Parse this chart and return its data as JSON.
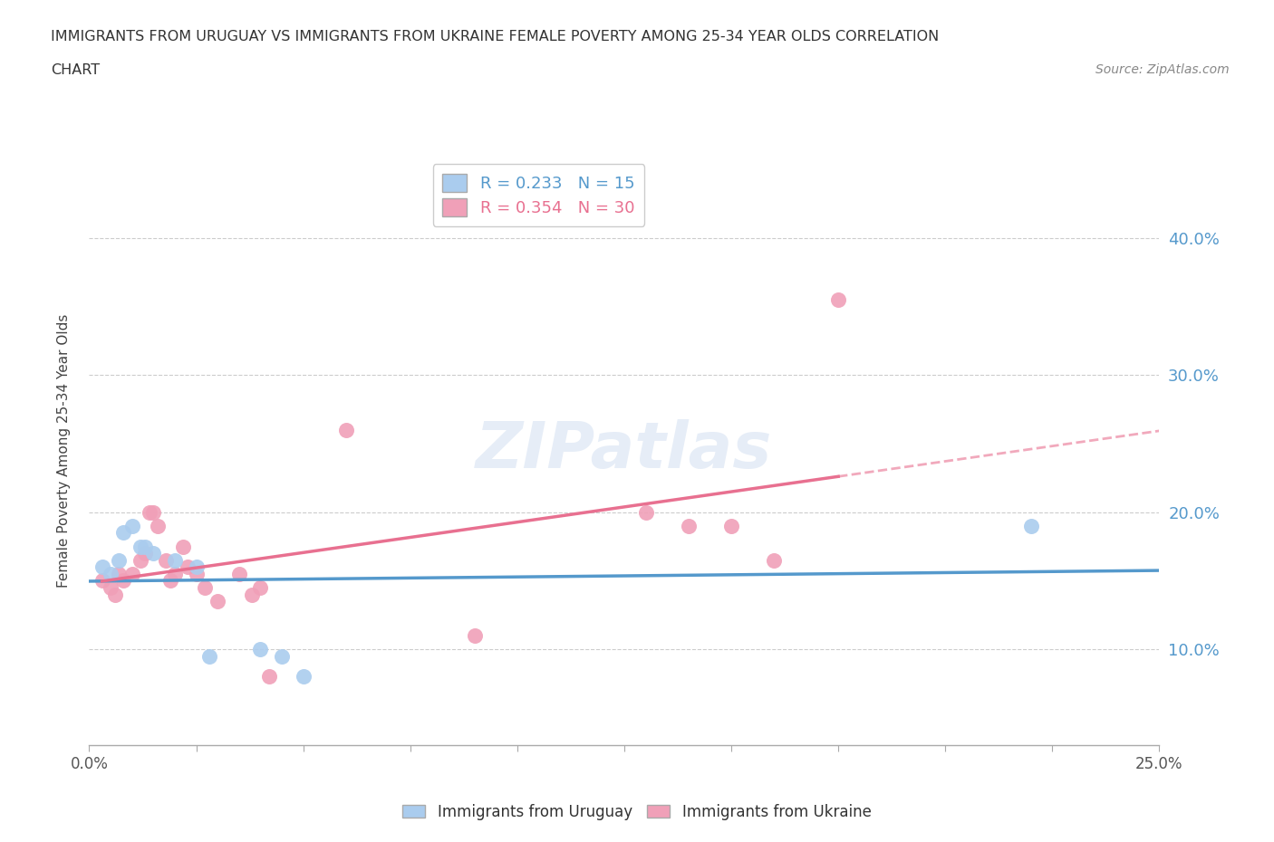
{
  "title_line1": "IMMIGRANTS FROM URUGUAY VS IMMIGRANTS FROM UKRAINE FEMALE POVERTY AMONG 25-34 YEAR OLDS CORRELATION",
  "title_line2": "CHART",
  "source": "Source: ZipAtlas.com",
  "ylabel": "Female Poverty Among 25-34 Year Olds",
  "xlim": [
    0.0,
    0.25
  ],
  "ylim": [
    0.03,
    0.46
  ],
  "xticks": [
    0.0,
    0.025,
    0.05,
    0.075,
    0.1,
    0.125,
    0.15,
    0.175,
    0.2,
    0.225,
    0.25
  ],
  "xtick_labels": [
    "0.0%",
    "",
    "",
    "",
    "",
    "",
    "",
    "",
    "",
    "",
    "25.0%"
  ],
  "yticks": [
    0.1,
    0.2,
    0.3,
    0.4
  ],
  "right_ytick_labels": [
    "10.0%",
    "20.0%",
    "30.0%",
    "40.0%"
  ],
  "uruguay_color": "#aaccee",
  "ukraine_color": "#f0a0b8",
  "uruguay_line_color": "#5599cc",
  "ukraine_line_color": "#e87090",
  "R_uruguay": 0.233,
  "N_uruguay": 15,
  "R_ukraine": 0.354,
  "N_ukraine": 30,
  "watermark": "ZIPatlas",
  "background_color": "#ffffff",
  "grid_color": "#cccccc",
  "uruguay_scatter_x": [
    0.003,
    0.005,
    0.007,
    0.008,
    0.01,
    0.012,
    0.013,
    0.015,
    0.02,
    0.025,
    0.028,
    0.04,
    0.045,
    0.05,
    0.22
  ],
  "uruguay_scatter_y": [
    0.16,
    0.155,
    0.165,
    0.185,
    0.19,
    0.175,
    0.175,
    0.17,
    0.165,
    0.16,
    0.095,
    0.1,
    0.095,
    0.08,
    0.19
  ],
  "ukraine_scatter_x": [
    0.003,
    0.005,
    0.006,
    0.007,
    0.008,
    0.01,
    0.012,
    0.013,
    0.014,
    0.015,
    0.016,
    0.018,
    0.019,
    0.02,
    0.022,
    0.023,
    0.025,
    0.027,
    0.03,
    0.035,
    0.038,
    0.04,
    0.042,
    0.06,
    0.09,
    0.13,
    0.14,
    0.15,
    0.16,
    0.175
  ],
  "ukraine_scatter_y": [
    0.15,
    0.145,
    0.14,
    0.155,
    0.15,
    0.155,
    0.165,
    0.17,
    0.2,
    0.2,
    0.19,
    0.165,
    0.15,
    0.155,
    0.175,
    0.16,
    0.155,
    0.145,
    0.135,
    0.155,
    0.14,
    0.145,
    0.08,
    0.26,
    0.11,
    0.2,
    0.19,
    0.19,
    0.165,
    0.355
  ]
}
